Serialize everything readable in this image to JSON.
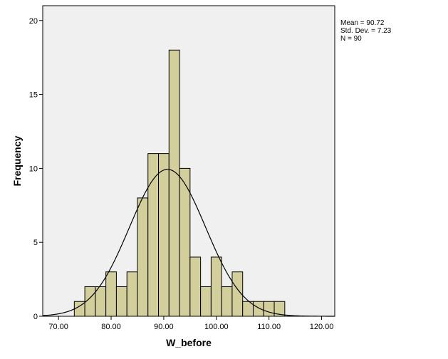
{
  "chart_data": {
    "type": "bar",
    "subtype": "histogram",
    "xlabel": "W_before",
    "ylabel": "Frequency",
    "xlim": [
      67.0,
      122.5
    ],
    "ylim": [
      0,
      21
    ],
    "x_ticks": [
      {
        "value": 70,
        "label": "70.00"
      },
      {
        "value": 80,
        "label": "80.00"
      },
      {
        "value": 90,
        "label": "90.00"
      },
      {
        "value": 100,
        "label": "100.00"
      },
      {
        "value": 110,
        "label": "110.00"
      },
      {
        "value": 120,
        "label": "120.00"
      }
    ],
    "y_ticks": [
      {
        "value": 0,
        "label": "0"
      },
      {
        "value": 5,
        "label": "5"
      },
      {
        "value": 10,
        "label": "10"
      },
      {
        "value": 15,
        "label": "15"
      },
      {
        "value": 20,
        "label": "20"
      }
    ],
    "bin_start": 73.0,
    "bin_width": 2.0,
    "values": [
      1,
      2,
      2,
      3,
      2,
      3,
      8,
      11,
      11,
      18,
      10,
      4,
      2,
      4,
      2,
      3,
      1,
      1,
      1,
      1
    ],
    "normal_curve": {
      "mean": 90.72,
      "sd": 7.23,
      "n": 90
    },
    "grid": false,
    "colors": {
      "bar_fill": "#d3cf9d",
      "bar_stroke": "#000000",
      "plot_bg": "#f0f0f0",
      "curve": "#000000"
    }
  },
  "stats_box": {
    "mean_text": "Mean = 90.72",
    "sd_text": "Std. Dev. = 7.23",
    "n_text": "N = 90"
  }
}
